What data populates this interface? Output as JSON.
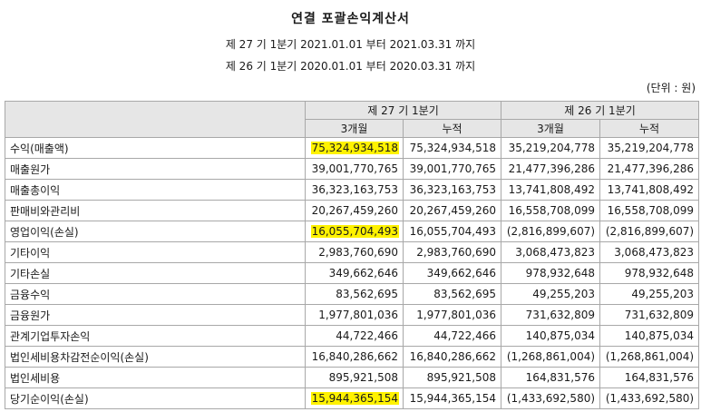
{
  "title": "연결 포괄손익계산서",
  "period_current": "제 27 기 1분기 2021.01.01 부터 2021.03.31 까지",
  "period_prior": "제 26 기 1분기 2020.01.01 부터 2020.03.31 까지",
  "unit": "(단위 : 원)",
  "headers": {
    "current_period": "제 27 기 1분기",
    "prior_period": "제 26 기 1분기",
    "three_months": "3개월",
    "cumulative": "누적"
  },
  "rows": [
    {
      "label": "수익(매출액)",
      "c3": "75,324,934,518",
      "ccum": "75,324,934,518",
      "p3": "35,219,204,778",
      "pcum": "35,219,204,778",
      "highlight": true
    },
    {
      "label": "매출원가",
      "c3": "39,001,770,765",
      "ccum": "39,001,770,765",
      "p3": "21,477,396,286",
      "pcum": "21,477,396,286",
      "highlight": false
    },
    {
      "label": "매출총이익",
      "c3": "36,323,163,753",
      "ccum": "36,323,163,753",
      "p3": "13,741,808,492",
      "pcum": "13,741,808,492",
      "highlight": false
    },
    {
      "label": "판매비와관리비",
      "c3": "20,267,459,260",
      "ccum": "20,267,459,260",
      "p3": "16,558,708,099",
      "pcum": "16,558,708,099",
      "highlight": false
    },
    {
      "label": "영업이익(손실)",
      "c3": "16,055,704,493",
      "ccum": "16,055,704,493",
      "p3": "(2,816,899,607)",
      "pcum": "(2,816,899,607)",
      "highlight": true
    },
    {
      "label": "기타이익",
      "c3": "2,983,760,690",
      "ccum": "2,983,760,690",
      "p3": "3,068,473,823",
      "pcum": "3,068,473,823",
      "highlight": false
    },
    {
      "label": "기타손실",
      "c3": "349,662,646",
      "ccum": "349,662,646",
      "p3": "978,932,648",
      "pcum": "978,932,648",
      "highlight": false
    },
    {
      "label": "금융수익",
      "c3": "83,562,695",
      "ccum": "83,562,695",
      "p3": "49,255,203",
      "pcum": "49,255,203",
      "highlight": false
    },
    {
      "label": "금융원가",
      "c3": "1,977,801,036",
      "ccum": "1,977,801,036",
      "p3": "731,632,809",
      "pcum": "731,632,809",
      "highlight": false
    },
    {
      "label": "관계기업투자손익",
      "c3": "44,722,466",
      "ccum": "44,722,466",
      "p3": "140,875,034",
      "pcum": "140,875,034",
      "highlight": false
    },
    {
      "label": "법인세비용차감전순이익(손실)",
      "c3": "16,840,286,662",
      "ccum": "16,840,286,662",
      "p3": "(1,268,861,004)",
      "pcum": "(1,268,861,004)",
      "highlight": false
    },
    {
      "label": "법인세비용",
      "c3": "895,921,508",
      "ccum": "895,921,508",
      "p3": "164,831,576",
      "pcum": "164,831,576",
      "highlight": false
    },
    {
      "label": "당기순이익(손실)",
      "c3": "15,944,365,154",
      "ccum": "15,944,365,154",
      "p3": "(1,433,692,580)",
      "pcum": "(1,433,692,580)",
      "highlight": true
    }
  ],
  "colors": {
    "highlight": "#fff200",
    "header_bg": "#e6e6e6",
    "border": "#a8a8a8"
  }
}
